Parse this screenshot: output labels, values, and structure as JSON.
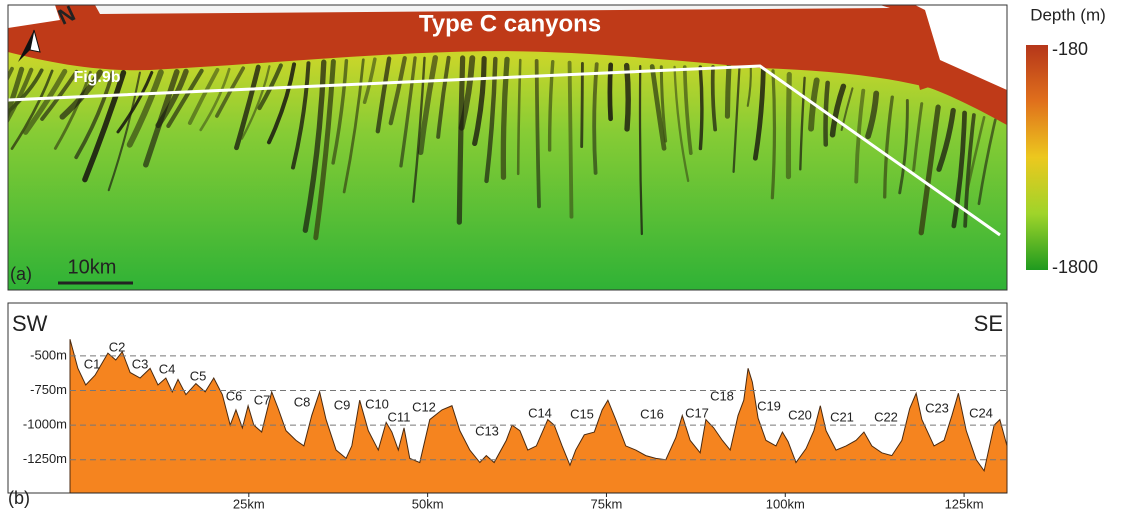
{
  "map": {
    "title": "Type C canyons",
    "profile_label": "Fig.9b",
    "panel_label": "(a)",
    "scale_bar": "10km",
    "colorbar": {
      "title": "Depth (m)",
      "ticks": [
        -180,
        -1800
      ],
      "colors": [
        "#b5361a",
        "#e0701c",
        "#ecc81e",
        "#9fd42a",
        "#1f9a1f"
      ]
    }
  },
  "chart_data": {
    "type": "area",
    "panel_label": "(b)",
    "direction_labels": [
      "SW",
      "SE"
    ],
    "color": "#f5841f",
    "line_color": "#4a2a10",
    "xlim": [
      0,
      131
    ],
    "ylim": [
      -1490,
      -140
    ],
    "xticks": [
      {
        "value": 25,
        "label": "25km"
      },
      {
        "value": 50,
        "label": "50km"
      },
      {
        "value": 75,
        "label": "75km"
      },
      {
        "value": 100,
        "label": "100km"
      },
      {
        "value": 125,
        "label": "125km"
      }
    ],
    "yticks": [
      {
        "value": -500,
        "label": "-500m"
      },
      {
        "value": -750,
        "label": "-750m"
      },
      {
        "value": -1000,
        "label": "-1000m"
      },
      {
        "value": -1250,
        "label": "-1250m"
      }
    ],
    "grid": true,
    "annotations": [
      "C1",
      "C2",
      "C3",
      "C4",
      "C5",
      "C6",
      "C7",
      "C8",
      "C9",
      "C10",
      "C11",
      "C12",
      "C13",
      "C14",
      "C15",
      "C16",
      "C17",
      "C18",
      "C19",
      "C20",
      "C21",
      "C22",
      "C23",
      "C24"
    ],
    "x": [
      0,
      1.1,
      2.2,
      3.5,
      5.3,
      6.4,
      7.3,
      8.4,
      9.8,
      11.2,
      12.3,
      13.4,
      14.3,
      15.1,
      16.2,
      17.6,
      18.9,
      20.1,
      21.3,
      22.4,
      23.2,
      24.1,
      24.9,
      25.7,
      26.8,
      28.2,
      29.1,
      30.2,
      31.6,
      32.7,
      33.8,
      34.9,
      35.8,
      37.2,
      38.6,
      39.4,
      40.5,
      41.7,
      43.1,
      44.2,
      45.0,
      45.9,
      46.7,
      47.5,
      48.9,
      50.3,
      52.0,
      53.4,
      54.5,
      55.9,
      57.3,
      58.2,
      59.3,
      61.0,
      61.8,
      62.9,
      64.0,
      65.2,
      66.8,
      67.7,
      68.8,
      69.9,
      70.7,
      71.9,
      73.3,
      74.4,
      75.2,
      76.3,
      77.7,
      79.1,
      80.5,
      81.9,
      83.3,
      84.7,
      85.6,
      86.7,
      88.1,
      88.9,
      90.0,
      91.2,
      92.3,
      93.4,
      94.2,
      94.8,
      95.4,
      96.2,
      97.3,
      98.7,
      99.6,
      100.4,
      101.5,
      102.9,
      104.0,
      104.9,
      105.7,
      107.1,
      108.5,
      109.9,
      111.0,
      112.1,
      113.5,
      114.9,
      116.3,
      117.4,
      118.3,
      119.1,
      120.8,
      122.2,
      123.3,
      124.2,
      125.3,
      126.7,
      127.8,
      129.2,
      130.0,
      131.0
    ],
    "values": [
      -380,
      -590,
      -710,
      -640,
      -480,
      -530,
      -470,
      -620,
      -660,
      -590,
      -710,
      -660,
      -760,
      -670,
      -780,
      -700,
      -760,
      -660,
      -780,
      -1000,
      -890,
      -1020,
      -860,
      -1000,
      -1050,
      -760,
      -880,
      -1040,
      -1110,
      -1150,
      -930,
      -760,
      -960,
      -1180,
      -1240,
      -1150,
      -820,
      -1040,
      -1180,
      -980,
      -1050,
      -1180,
      -1020,
      -1240,
      -1270,
      -960,
      -890,
      -860,
      -1040,
      -1180,
      -1270,
      -1220,
      -1270,
      -1110,
      -1000,
      -1040,
      -1180,
      -1150,
      -960,
      -1000,
      -1150,
      -1290,
      -1180,
      -1070,
      -1050,
      -890,
      -820,
      -960,
      -1150,
      -1180,
      -1220,
      -1240,
      -1250,
      -1090,
      -930,
      -1110,
      -1200,
      -960,
      -1020,
      -1110,
      -1180,
      -930,
      -820,
      -590,
      -690,
      -950,
      -1110,
      -1150,
      -1050,
      -1120,
      -1270,
      -1170,
      -1040,
      -860,
      -1040,
      -1180,
      -1150,
      -1110,
      -1050,
      -1150,
      -1200,
      -1220,
      -1110,
      -880,
      -770,
      -960,
      -1150,
      -1110,
      -930,
      -770,
      -1040,
      -1250,
      -1330,
      -1000,
      -960,
      -1150
    ]
  }
}
